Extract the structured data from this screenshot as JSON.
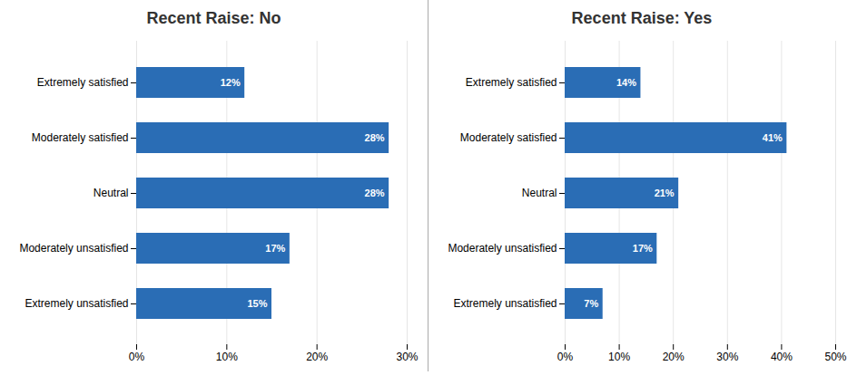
{
  "chart_data": [
    {
      "type": "bar",
      "title": "Recent Raise: No",
      "orientation": "horizontal",
      "categories": [
        "Extremely satisfied",
        "Moderately satisfied",
        "Neutral",
        "Moderately unsatisfied",
        "Extremely unsatisfied"
      ],
      "values": [
        12,
        28,
        28,
        17,
        15
      ],
      "value_labels": [
        "12%",
        "28%",
        "28%",
        "17%",
        "15%"
      ],
      "data_labels": true,
      "color": "#2a6db5",
      "xlim": [
        0,
        30
      ],
      "xticks": [
        {
          "value": 0,
          "label": "0%"
        },
        {
          "value": 10,
          "label": "10%"
        },
        {
          "value": 20,
          "label": "20%"
        },
        {
          "value": 30,
          "label": "30%"
        }
      ],
      "grid": true
    },
    {
      "type": "bar",
      "title": "Recent Raise: Yes",
      "orientation": "horizontal",
      "categories": [
        "Extremely satisfied",
        "Moderately satisfied",
        "Neutral",
        "Moderately unsatisfied",
        "Extremely unsatisfied"
      ],
      "values": [
        14,
        41,
        21,
        17,
        7
      ],
      "value_labels": [
        "14%",
        "41%",
        "21%",
        "17%",
        "7%"
      ],
      "data_labels": true,
      "color": "#2a6db5",
      "xlim": [
        0,
        50
      ],
      "xticks": [
        {
          "value": 0,
          "label": "0%"
        },
        {
          "value": 10,
          "label": "10%"
        },
        {
          "value": 20,
          "label": "20%"
        },
        {
          "value": 30,
          "label": "30%"
        },
        {
          "value": 40,
          "label": "40%"
        },
        {
          "value": 50,
          "label": "50%"
        }
      ],
      "grid": true
    }
  ]
}
